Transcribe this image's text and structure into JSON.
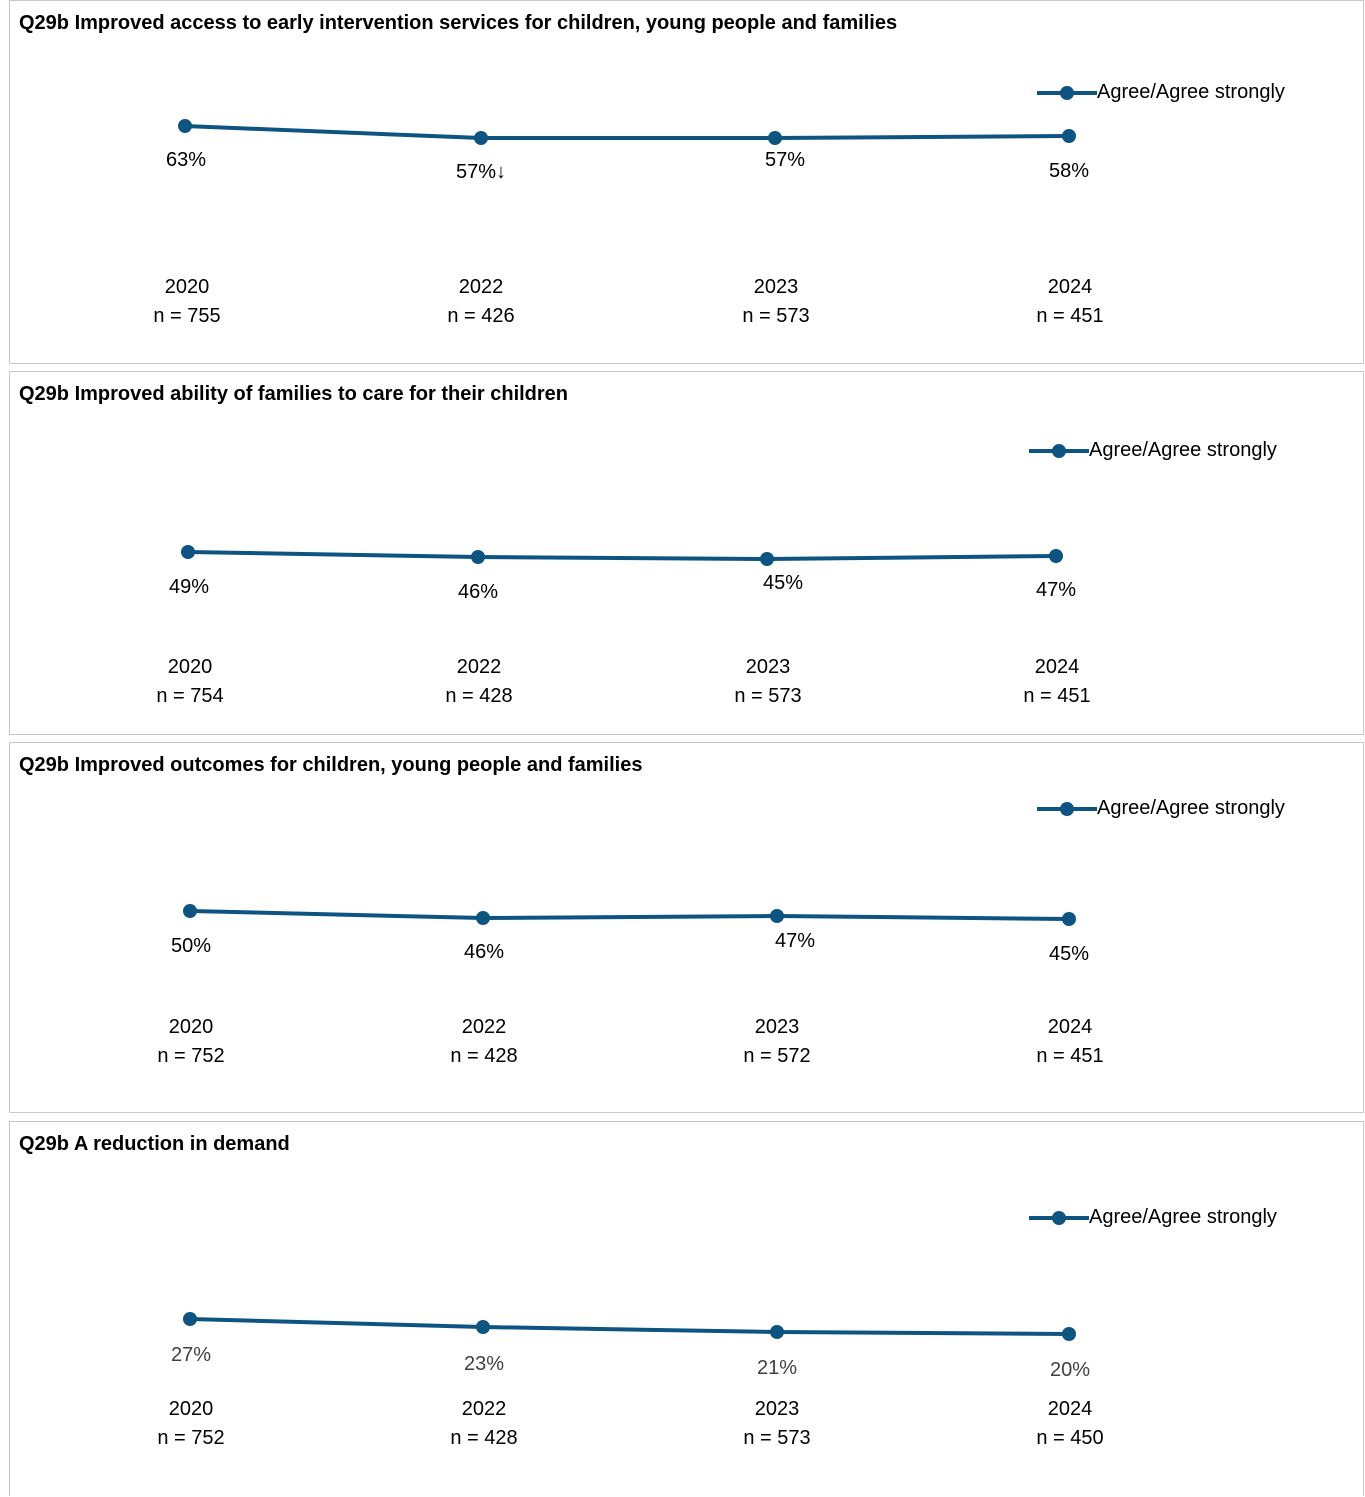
{
  "colors": {
    "series": "#0d5580",
    "border": "#c8c8c8"
  },
  "chart_data": [
    {
      "type": "line",
      "title": "Q29b Improved access to early intervention services for children, young people and families",
      "categories": [
        "2020",
        "2022",
        "2023",
        "2024"
      ],
      "bases": [
        "n = 755",
        "n = 426",
        "n = 573",
        "n = 451"
      ],
      "series": [
        {
          "name": "Agree/Agree strongly",
          "values": [
            63,
            57,
            57,
            58
          ],
          "labels": [
            "63%",
            "57%↓",
            "57%",
            "58%"
          ]
        }
      ],
      "legend": "top-right",
      "grid": false
    },
    {
      "type": "line",
      "title": "Q29b Improved ability of families to care for their children",
      "categories": [
        "2020",
        "2022",
        "2023",
        "2024"
      ],
      "bases": [
        "n = 754",
        "n = 428",
        "n = 573",
        "n = 451"
      ],
      "series": [
        {
          "name": "Agree/Agree strongly",
          "values": [
            49,
            46,
            45,
            47
          ],
          "labels": [
            "49%",
            "46%",
            "45%",
            "47%"
          ]
        }
      ],
      "legend": "top-right",
      "grid": false
    },
    {
      "type": "line",
      "title": "Q29b Improved outcomes for children, young people and families",
      "categories": [
        "2020",
        "2022",
        "2023",
        "2024"
      ],
      "bases": [
        "n = 752",
        "n = 428",
        "n = 572",
        "n = 451"
      ],
      "series": [
        {
          "name": "Agree/Agree strongly",
          "values": [
            50,
            46,
            47,
            45
          ],
          "labels": [
            "50%",
            "46%",
            "47%",
            "45%"
          ]
        }
      ],
      "legend": "top-right",
      "grid": false
    },
    {
      "type": "line",
      "title": "Q29b A reduction in demand",
      "categories": [
        "2020",
        "2022",
        "2023",
        "2024"
      ],
      "bases": [
        "n = 752",
        "n = 428",
        "n = 573",
        "n = 450"
      ],
      "series": [
        {
          "name": "Agree/Agree strongly",
          "values": [
            27,
            23,
            21,
            20
          ],
          "labels": [
            "27%",
            "23%",
            "21%",
            "20%"
          ]
        }
      ],
      "legend": "top-right",
      "grid": false
    }
  ]
}
